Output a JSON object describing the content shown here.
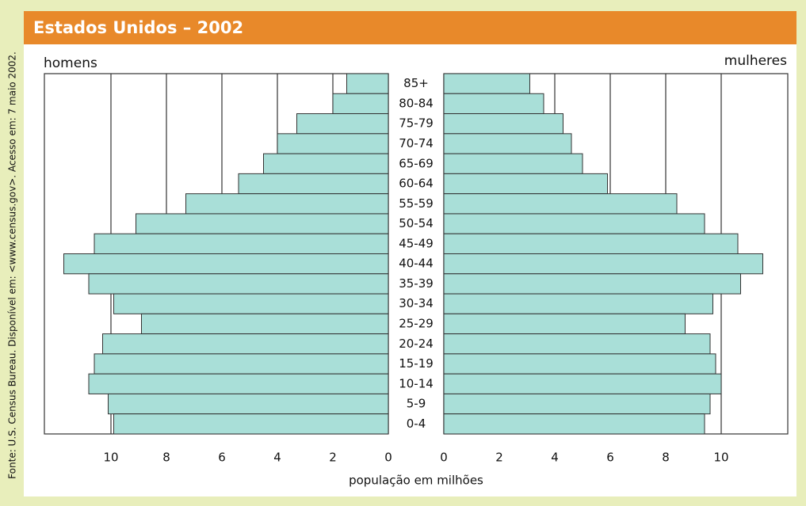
{
  "chart_data": {
    "type": "pyramid",
    "title": "Estados Unidos – 2002",
    "source": "Fonte: U.S. Census Bureau. Disponível em: <www.census.gov>. Acesso em: 7 maio 2002.",
    "xlabel": "população em milhões",
    "categories": [
      "85+",
      "80-84",
      "75-79",
      "70-74",
      "65-69",
      "60-64",
      "55-59",
      "50-54",
      "45-49",
      "40-44",
      "35-39",
      "30-34",
      "25-29",
      "20-24",
      "15-19",
      "10-14",
      "5-9",
      "0-4"
    ],
    "series": [
      {
        "name": "homens",
        "color": "#a9dfd8",
        "values": [
          1.5,
          2.0,
          3.3,
          4.0,
          4.5,
          5.4,
          7.3,
          9.1,
          10.6,
          11.7,
          10.8,
          9.9,
          8.9,
          10.3,
          10.6,
          10.8,
          10.1,
          9.9
        ]
      },
      {
        "name": "mulheres",
        "color": "#a9dfd8",
        "values": [
          3.1,
          3.6,
          4.3,
          4.6,
          5.0,
          5.9,
          8.4,
          9.4,
          10.6,
          11.5,
          10.7,
          9.7,
          8.7,
          9.6,
          9.8,
          10.0,
          9.6,
          9.4
        ]
      }
    ],
    "xlim": [
      0,
      12.4
    ],
    "xticks": [
      0,
      2,
      4,
      6,
      8,
      10
    ],
    "grid": true
  }
}
